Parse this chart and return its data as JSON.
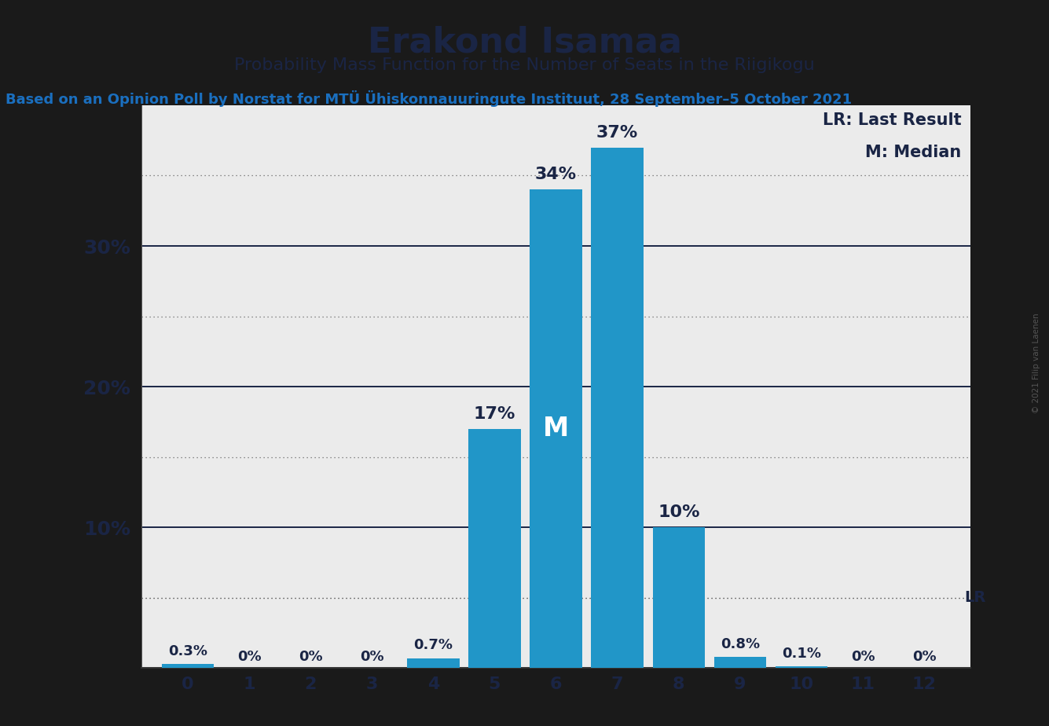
{
  "title": "Erakond Isamaa",
  "subtitle": "Probability Mass Function for the Number of Seats in the Riigikogu",
  "source_line": "Based on an Opinion Poll by Norstat for MTÜ Ühiskonnauuringute Instituut, 28 September–5 October 2021",
  "categories": [
    0,
    1,
    2,
    3,
    4,
    5,
    6,
    7,
    8,
    9,
    10,
    11,
    12
  ],
  "values": [
    0.3,
    0,
    0,
    0,
    0.7,
    17,
    34,
    37,
    10,
    0.8,
    0.1,
    0,
    0
  ],
  "labels": [
    "0.3%",
    "0%",
    "0%",
    "0%",
    "0.7%",
    "17%",
    "34%",
    "37%",
    "10%",
    "0.8%",
    "0.1%",
    "0%",
    "0%"
  ],
  "bar_color": "#2196c8",
  "background_color": "#ebebeb",
  "outer_background": "#1a1a1a",
  "title_color": "#1a2545",
  "subtitle_color": "#1a2545",
  "source_color": "#1a6fbf",
  "label_color_dark": "#1a2545",
  "label_color_white": "#ffffff",
  "median_bar_index": 6,
  "lr_value": 5.0,
  "lr_label": "LR",
  "lr_legend": "LR: Last Result",
  "median_legend": "M: Median",
  "ylim_max": 40,
  "dotted_yticks": [
    5,
    15,
    25,
    35
  ],
  "solid_yticks": [
    10,
    20,
    30
  ],
  "copyright": "© 2021 Filip van Laenen"
}
